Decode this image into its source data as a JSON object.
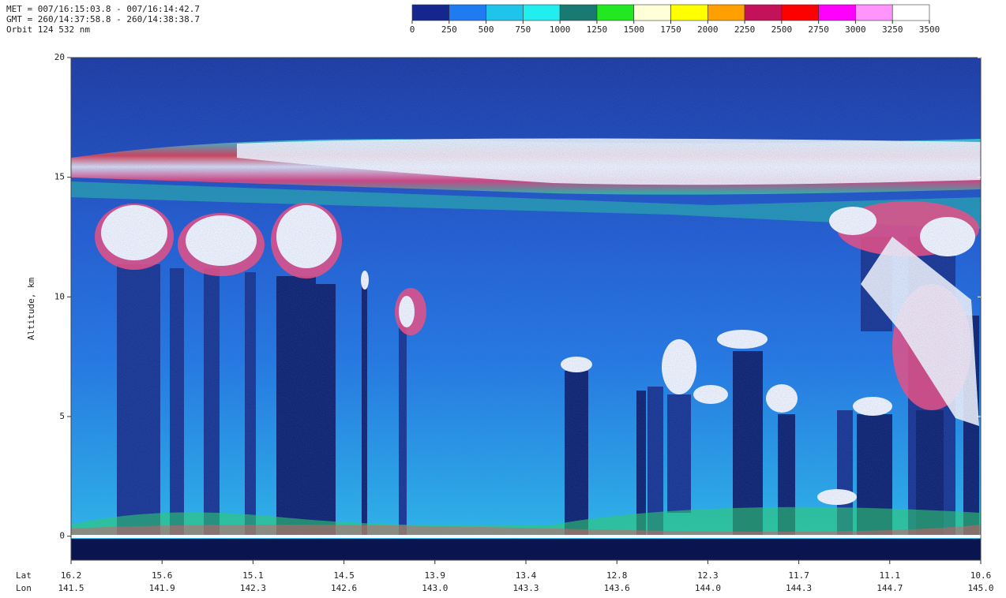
{
  "chart_data": {
    "type": "heatmap",
    "header": [
      "MET = 007/16:15:03.8 - 007/16:14:42.7",
      "GMT = 260/14:37:58.8 - 260/14:38:38.7",
      "Orbit 124  532 nm"
    ],
    "colorbar": {
      "colors": [
        "#16268f",
        "#1e7cf0",
        "#1fc4ea",
        "#22eef0",
        "#187a72",
        "#22e822",
        "#ffffd8",
        "#ffff00",
        "#ffa000",
        "#c4125a",
        "#ff0000",
        "#ff00ff",
        "#ff94ff",
        "#ffffff"
      ],
      "ticks": [
        0,
        250,
        500,
        750,
        1000,
        1250,
        1500,
        1750,
        2000,
        2250,
        2500,
        2750,
        3000,
        3250,
        3500
      ]
    },
    "y_label": "Altitude, km",
    "ylim": [
      -1,
      20
    ],
    "yticks": [
      0,
      5,
      10,
      15,
      20
    ],
    "x_row_labels": [
      "Lat",
      "Lon"
    ],
    "lat": [
      "16.2",
      "15.6",
      "15.1",
      "14.5",
      "13.9",
      "13.4",
      "12.8",
      "12.3",
      "11.7",
      "11.1",
      "10.6"
    ],
    "lon": [
      "141.5",
      "141.9",
      "142.3",
      "142.6",
      "143.0",
      "143.3",
      "143.6",
      "144.0",
      "144.3",
      "144.7",
      "145.0"
    ]
  }
}
